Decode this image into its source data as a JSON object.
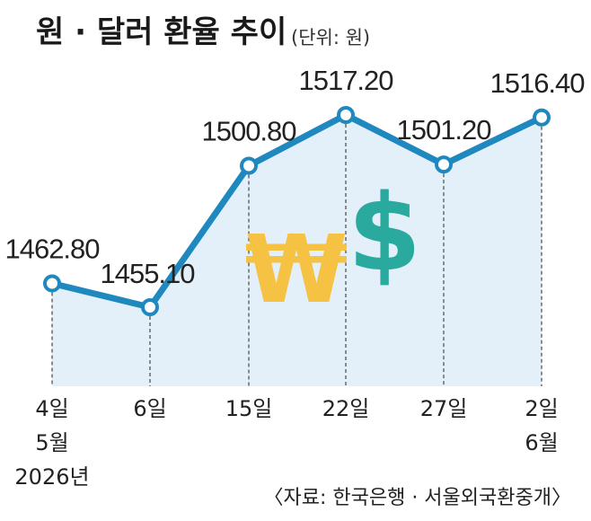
{
  "header": {
    "title": "원 · 달러 환율 추이",
    "unit": "(단위: 원)"
  },
  "source": "〈자료: 한국은행 · 서울외국환중개〉",
  "colors": {
    "line": "#1f88bf",
    "area": "#e3eff9",
    "marker_fill": "#ffffff",
    "won_sign": "#f6c243",
    "dollar_sign": "#2aaa9e"
  },
  "icons": [
    "won-sign-icon",
    "dollar-sign-icon"
  ],
  "chart_data": {
    "type": "line",
    "title": "원 · 달러 환율 추이",
    "unit": "(단위: 원)",
    "categories": [
      [
        "4일",
        "5월",
        "2026년"
      ],
      [
        "6일"
      ],
      [
        "15일"
      ],
      [
        "22일"
      ],
      [
        "27일"
      ],
      [
        "2일",
        "6월"
      ]
    ],
    "values": [
      1462.8,
      1455.1,
      1500.8,
      1517.2,
      1501.2,
      1516.4
    ],
    "value_labels": [
      "1462.80",
      "1455.10",
      "1500.80",
      "1517.20",
      "1501.20",
      "1516.40"
    ],
    "grid": false,
    "legend": "none"
  }
}
